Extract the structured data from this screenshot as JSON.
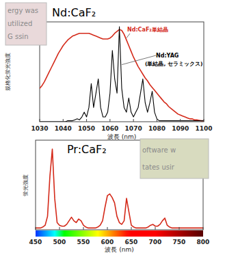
{
  "chart_data": [
    {
      "type": "line",
      "title": "Nd:CaF₂",
      "xlabel": "波長 (nm)",
      "ylabel": "規格化蛍光強度",
      "x": [
        1030,
        1031,
        1032,
        1033,
        1034,
        1035,
        1036,
        1037,
        1038,
        1039,
        1040,
        1041,
        1042,
        1043,
        1044,
        1045,
        1046,
        1047,
        1048,
        1049,
        1050,
        1051,
        1052,
        1053,
        1054,
        1055,
        1056,
        1057,
        1058,
        1059,
        1060,
        1061,
        1062,
        1063,
        1064,
        1065,
        1066,
        1067,
        1068,
        1069,
        1070,
        1071,
        1072,
        1073,
        1074,
        1075,
        1076,
        1077,
        1078,
        1079,
        1080,
        1081,
        1082,
        1083,
        1084,
        1085,
        1086,
        1087,
        1088,
        1089,
        1090,
        1091,
        1092,
        1093,
        1094,
        1095,
        1096,
        1097,
        1098,
        1099,
        1100
      ],
      "series": [
        {
          "name": "Nd:CaF₂単結晶",
          "color": "#d42a1a",
          "values": [
            0.35,
            0.38,
            0.42,
            0.47,
            0.52,
            0.57,
            0.62,
            0.67,
            0.72,
            0.76,
            0.8,
            0.83,
            0.86,
            0.88,
            0.9,
            0.91,
            0.92,
            0.93,
            0.93,
            0.93,
            0.93,
            0.93,
            0.92,
            0.91,
            0.9,
            0.89,
            0.88,
            0.87,
            0.87,
            0.87,
            0.88,
            0.9,
            0.93,
            0.95,
            0.97,
            0.96,
            0.92,
            0.86,
            0.8,
            0.74,
            0.68,
            0.63,
            0.58,
            0.54,
            0.5,
            0.46,
            0.43,
            0.39,
            0.36,
            0.33,
            0.3,
            0.27,
            0.24,
            0.21,
            0.19,
            0.16,
            0.14,
            0.12,
            0.1,
            0.08,
            0.07,
            0.06,
            0.05,
            0.04,
            0.03,
            0.03,
            0.02,
            0.02,
            0.015,
            0.01,
            0.01
          ]
        },
        {
          "name": "Nd:YAG",
          "color": "#000000",
          "values": [
            0,
            0,
            0,
            0,
            0,
            0,
            0,
            0,
            0,
            0,
            0,
            0,
            0.01,
            0.01,
            0.01,
            0.02,
            0.03,
            0.02,
            0.05,
            0.1,
            0.05,
            0.15,
            0.4,
            0.15,
            0.3,
            0.45,
            0.15,
            0.05,
            0.05,
            0.1,
            0.3,
            0.75,
            0.45,
            0.3,
            1.0,
            0.35,
            0.15,
            0.1,
            0.25,
            0.1,
            0.05,
            0.1,
            0.15,
            0.3,
            0.45,
            0.2,
            0.1,
            0.2,
            0.32,
            0.1,
            0.03,
            0.01,
            0.01,
            0.01,
            0.01,
            0.01,
            0.01,
            0.01,
            0.01,
            0.01,
            0.01,
            0.01,
            0.01,
            0.01,
            0.01,
            0.01,
            0.01,
            0.01,
            0.01,
            0.01,
            0.01
          ]
        }
      ],
      "annotations": [
        "(単結晶, セラミックス)"
      ],
      "photo_text": [
        "ergy was",
        "utilized",
        "G ssin"
      ],
      "xlim": [
        1030,
        1100
      ],
      "xticks": [
        1030,
        1040,
        1050,
        1060,
        1070,
        1080,
        1090,
        1100
      ],
      "ylim": [
        0,
        1.05
      ],
      "tick_labels": "x"
    },
    {
      "type": "line",
      "title": "Pr:CaF₂",
      "xlabel": "波長 (nm)",
      "ylabel": "蛍光強度",
      "x": [
        450,
        455,
        460,
        465,
        470,
        475,
        480,
        485,
        490,
        495,
        500,
        505,
        510,
        515,
        520,
        525,
        530,
        535,
        540,
        545,
        550,
        555,
        560,
        565,
        570,
        575,
        580,
        585,
        590,
        595,
        600,
        605,
        610,
        615,
        620,
        625,
        630,
        635,
        640,
        645,
        650,
        655,
        660,
        665,
        670,
        675,
        680,
        685,
        690,
        695,
        700,
        705,
        710,
        715,
        720,
        725,
        730,
        735,
        740,
        745,
        750,
        755,
        760,
        765,
        770,
        775,
        780,
        785,
        790,
        795,
        800
      ],
      "series": [
        {
          "color": "#d42a1a",
          "values": [
            0.02,
            0.02,
            0.02,
            0.03,
            0.05,
            0.15,
            0.6,
            0.9,
            0.35,
            0.08,
            0.05,
            0.04,
            0.04,
            0.06,
            0.1,
            0.14,
            0.1,
            0.08,
            0.12,
            0.1,
            0.05,
            0.03,
            0.02,
            0.02,
            0.02,
            0.02,
            0.03,
            0.05,
            0.1,
            0.25,
            0.38,
            0.4,
            0.36,
            0.3,
            0.15,
            0.08,
            0.06,
            0.1,
            0.35,
            0.2,
            0.05,
            0.03,
            0.02,
            0.02,
            0.02,
            0.02,
            0.02,
            0.03,
            0.05,
            0.06,
            0.04,
            0.04,
            0.06,
            0.1,
            0.13,
            0.05,
            0.03,
            0.02,
            0.02,
            0.02,
            0.02,
            0.02,
            0.02,
            0.02,
            0.02,
            0.02,
            0.02,
            0.02,
            0.02,
            0.02,
            0.02
          ]
        }
      ],
      "photo_text": [
        "oftware w",
        "tates usir"
      ],
      "xlim": [
        450,
        800
      ],
      "xticks": [
        450,
        500,
        550,
        600,
        650,
        700,
        750,
        800
      ],
      "ylim": [
        0,
        1
      ],
      "tick_labels": "x"
    }
  ]
}
